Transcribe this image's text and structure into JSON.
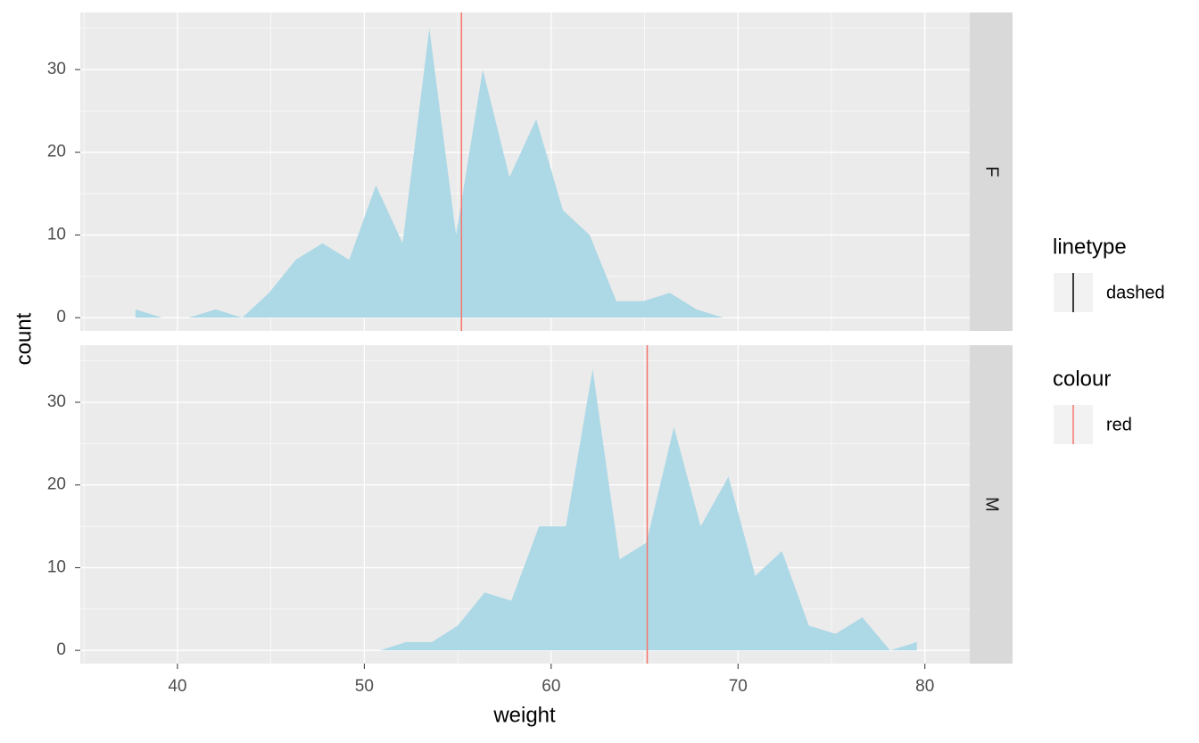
{
  "chart_data": {
    "type": "area",
    "x_label": "weight",
    "y_label": "count",
    "fill": "#add8e6",
    "vline_color": "#f8766d",
    "xlim": [
      34.8,
      82.4
    ],
    "ylim": [
      -1.6,
      36.9
    ],
    "xticks": [
      40,
      50,
      60,
      70,
      80
    ],
    "yticks": [
      0,
      10,
      20,
      30
    ],
    "xminor": [
      35,
      45,
      55,
      65,
      75
    ],
    "yminor": [
      5,
      15,
      25,
      35
    ],
    "grid": true,
    "facets": [
      {
        "label": "F",
        "x": [
          37.75,
          39.18,
          40.6,
          42.04,
          43.47,
          44.9,
          46.33,
          47.76,
          49.19,
          50.62,
          52.05,
          53.48,
          54.91,
          56.34,
          57.77,
          59.2,
          60.63,
          62.06,
          63.49,
          64.92,
          66.35,
          67.78,
          69.21
        ],
        "values": [
          1,
          0,
          0,
          1,
          0,
          3,
          7,
          9,
          7,
          16,
          9,
          35,
          10,
          30,
          17,
          24,
          13,
          10,
          2,
          2,
          3,
          1,
          0
        ],
        "vline": 55.2
      },
      {
        "label": "M",
        "x": [
          50.85,
          52.23,
          53.62,
          55.0,
          56.44,
          57.87,
          59.35,
          60.79,
          62.22,
          63.66,
          65.09,
          66.57,
          68.0,
          69.49,
          70.92,
          72.35,
          73.79,
          75.22,
          76.65,
          78.14,
          79.57
        ],
        "values": [
          0,
          1,
          1,
          3,
          7,
          6,
          15,
          15,
          34,
          11,
          13,
          27,
          15,
          21,
          9,
          12,
          3,
          2,
          4,
          0,
          1
        ],
        "vline": 65.14
      }
    ],
    "legends": [
      {
        "title": "linetype",
        "labels": [
          "dashed"
        ],
        "color": "#000000"
      },
      {
        "title": "colour",
        "labels": [
          "red"
        ],
        "color": "#f8766d"
      }
    ]
  }
}
